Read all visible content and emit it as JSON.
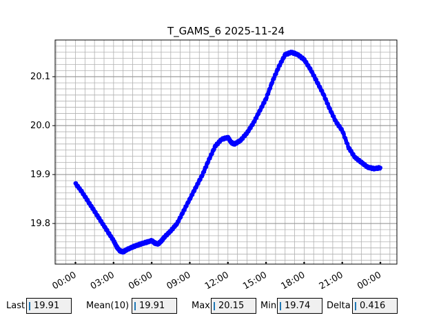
{
  "chart_data": {
    "type": "line",
    "title": "T_GAMS_6 2025-11-24",
    "xlabel": "",
    "ylabel": "",
    "x_tick_labels": [
      "00:00",
      "03:00",
      "06:00",
      "09:00",
      "12:00",
      "15:00",
      "18:00",
      "21:00",
      "00:00"
    ],
    "x_tick_hours": [
      0,
      3,
      6,
      9,
      12,
      15,
      18,
      21,
      24
    ],
    "xlim_hours": [
      -1.6,
      25.3
    ],
    "y_ticks": [
      19.8,
      19.9,
      20.0,
      20.1
    ],
    "y_tick_labels": [
      "19.8",
      "19.9",
      "20.0",
      "20.1"
    ],
    "ylim": [
      19.717,
      20.175
    ],
    "grid": true,
    "minor_grid": true,
    "series": [
      {
        "color": "#0000ff",
        "marker": "circle",
        "points": [
          [
            0.0,
            19.882
          ],
          [
            0.5,
            19.865
          ],
          [
            1.0,
            19.845
          ],
          [
            1.5,
            19.825
          ],
          [
            2.0,
            19.805
          ],
          [
            2.5,
            19.785
          ],
          [
            3.0,
            19.765
          ],
          [
            3.25,
            19.752
          ],
          [
            3.5,
            19.744
          ],
          [
            3.75,
            19.742
          ],
          [
            4.0,
            19.746
          ],
          [
            4.5,
            19.752
          ],
          [
            5.0,
            19.757
          ],
          [
            5.5,
            19.761
          ],
          [
            6.0,
            19.765
          ],
          [
            6.25,
            19.76
          ],
          [
            6.5,
            19.758
          ],
          [
            6.75,
            19.764
          ],
          [
            7.0,
            19.772
          ],
          [
            7.5,
            19.785
          ],
          [
            8.0,
            19.8
          ],
          [
            8.5,
            19.825
          ],
          [
            9.0,
            19.85
          ],
          [
            9.5,
            19.875
          ],
          [
            10.0,
            19.9
          ],
          [
            10.5,
            19.93
          ],
          [
            11.0,
            19.958
          ],
          [
            11.5,
            19.972
          ],
          [
            12.0,
            19.976
          ],
          [
            12.25,
            19.966
          ],
          [
            12.5,
            19.962
          ],
          [
            13.0,
            19.97
          ],
          [
            13.5,
            19.985
          ],
          [
            14.0,
            20.005
          ],
          [
            14.5,
            20.03
          ],
          [
            15.0,
            20.055
          ],
          [
            15.5,
            20.09
          ],
          [
            16.0,
            20.12
          ],
          [
            16.5,
            20.145
          ],
          [
            17.0,
            20.15
          ],
          [
            17.5,
            20.145
          ],
          [
            18.0,
            20.135
          ],
          [
            18.5,
            20.115
          ],
          [
            19.0,
            20.09
          ],
          [
            19.5,
            20.065
          ],
          [
            20.0,
            20.035
          ],
          [
            20.5,
            20.008
          ],
          [
            21.0,
            19.99
          ],
          [
            21.5,
            19.955
          ],
          [
            22.0,
            19.935
          ],
          [
            22.5,
            19.925
          ],
          [
            23.0,
            19.915
          ],
          [
            23.5,
            19.912
          ],
          [
            24.0,
            19.914
          ]
        ]
      }
    ]
  },
  "stats": [
    {
      "label": "Last",
      "value": "19.91"
    },
    {
      "label": "Mean(10)",
      "value": "19.91"
    },
    {
      "label": "Max",
      "value": "20.15"
    },
    {
      "label": "Min",
      "value": "19.74"
    },
    {
      "label": "Delta",
      "value": "0.416"
    }
  ]
}
